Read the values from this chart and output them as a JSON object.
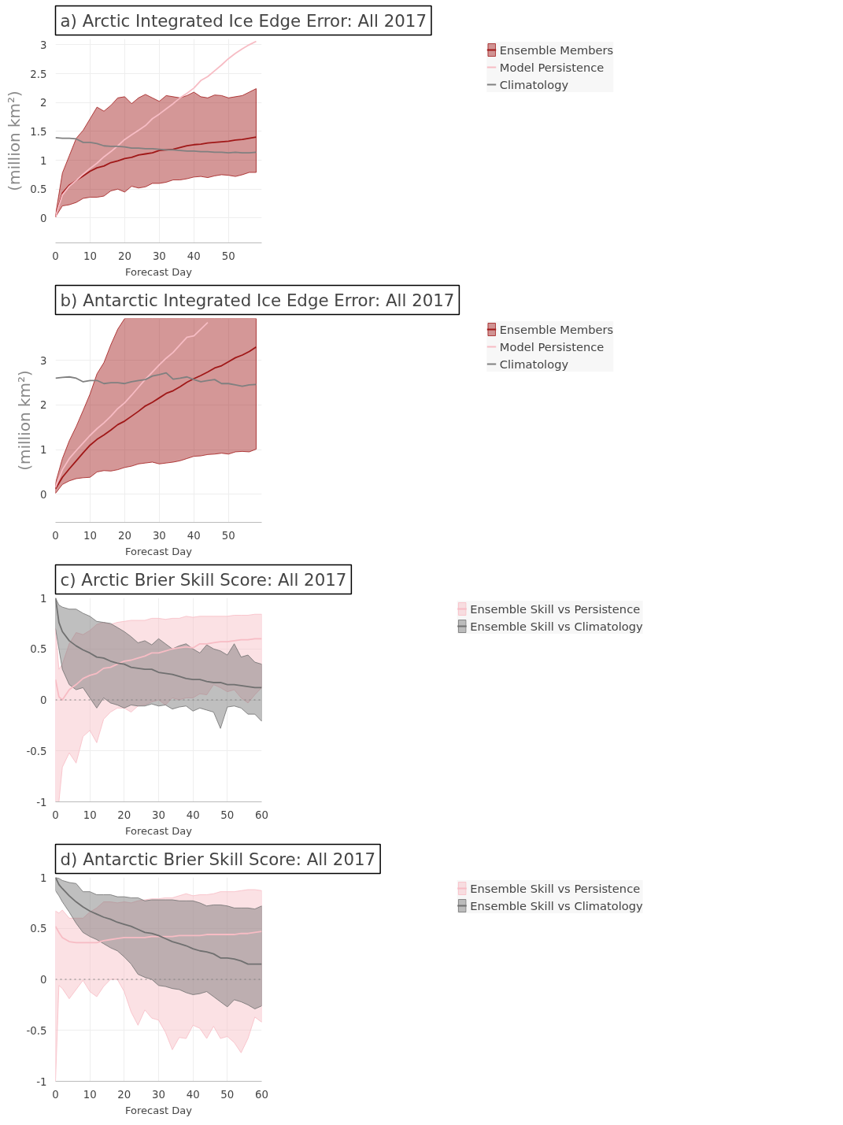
{
  "chart_data": [
    {
      "type": "line",
      "title": "a) Arctic Integrated Ice Edge Error: All 2017",
      "xlabel": "Forecast Day",
      "ylabel": "(million km²)",
      "xlim": [
        0,
        59.6
      ],
      "ylim": [
        -0.43,
        3.1
      ],
      "xticks": [
        0,
        10,
        20,
        30,
        40,
        50
      ],
      "yticks": [
        0,
        0.5,
        1,
        1.5,
        2,
        2.5,
        3
      ],
      "grid": true,
      "legend": "top right",
      "x": [
        0,
        2,
        4,
        6,
        8,
        10,
        12,
        14,
        16,
        18,
        20,
        22,
        24,
        26,
        28,
        30,
        32,
        34,
        36,
        38,
        40,
        42,
        44,
        46,
        48,
        50,
        52,
        54,
        56,
        58
      ],
      "series": [
        {
          "name": "Ensemble Members",
          "color": "#a01818",
          "values": [
            0.02,
            0.43,
            0.57,
            0.65,
            0.73,
            0.81,
            0.87,
            0.9,
            0.96,
            0.99,
            1.03,
            1.05,
            1.09,
            1.11,
            1.13,
            1.17,
            1.18,
            1.19,
            1.22,
            1.25,
            1.27,
            1.28,
            1.3,
            1.31,
            1.32,
            1.33,
            1.35,
            1.36,
            1.38,
            1.4
          ],
          "upper": [
            0.05,
            0.78,
            1.08,
            1.38,
            1.52,
            1.72,
            1.92,
            1.85,
            1.95,
            2.08,
            2.1,
            1.98,
            2.08,
            2.14,
            2.08,
            2.02,
            2.12,
            2.1,
            2.08,
            2.12,
            2.18,
            2.1,
            2.08,
            2.13,
            2.12,
            2.08,
            2.1,
            2.12,
            2.18,
            2.24
          ],
          "lower": [
            0.02,
            0.21,
            0.23,
            0.27,
            0.34,
            0.36,
            0.36,
            0.38,
            0.47,
            0.5,
            0.45,
            0.55,
            0.52,
            0.54,
            0.6,
            0.6,
            0.62,
            0.66,
            0.66,
            0.68,
            0.71,
            0.72,
            0.7,
            0.73,
            0.75,
            0.74,
            0.72,
            0.75,
            0.79,
            0.79
          ]
        },
        {
          "name": "Model Persistence",
          "color": "#f7bcc4",
          "values": [
            0.02,
            0.4,
            0.55,
            0.65,
            0.76,
            0.86,
            0.95,
            1.06,
            1.15,
            1.25,
            1.36,
            1.44,
            1.52,
            1.6,
            1.72,
            1.8,
            1.89,
            1.98,
            2.08,
            2.16,
            2.25,
            2.38,
            2.45,
            2.55,
            2.65,
            2.76,
            2.85,
            2.93,
            3.0,
            3.06
          ]
        },
        {
          "name": "Climatology",
          "color": "#808080",
          "values": [
            1.39,
            1.38,
            1.38,
            1.37,
            1.31,
            1.31,
            1.29,
            1.25,
            1.24,
            1.24,
            1.23,
            1.21,
            1.21,
            1.2,
            1.2,
            1.19,
            1.18,
            1.18,
            1.17,
            1.16,
            1.16,
            1.15,
            1.15,
            1.14,
            1.14,
            1.13,
            1.14,
            1.13,
            1.13,
            1.14
          ]
        }
      ]
    },
    {
      "type": "line",
      "title": "b) Antarctic Integrated Ice Edge Error: All 2017",
      "xlabel": "Forecast Day",
      "ylabel": "(million km²)",
      "xlim": [
        0,
        59.6
      ],
      "ylim": [
        -0.63,
        3.94
      ],
      "xticks": [
        0,
        10,
        20,
        30,
        40,
        50
      ],
      "yticks": [
        0,
        1,
        2,
        3
      ],
      "grid": true,
      "legend": "top right",
      "x": [
        0,
        2,
        4,
        6,
        8,
        10,
        12,
        14,
        16,
        18,
        20,
        22,
        24,
        26,
        28,
        30,
        32,
        34,
        36,
        38,
        40,
        42,
        44,
        46,
        48,
        50,
        52,
        54,
        56,
        58
      ],
      "series": [
        {
          "name": "Ensemble Members",
          "color": "#a01818",
          "values": [
            0.12,
            0.38,
            0.57,
            0.75,
            0.93,
            1.1,
            1.23,
            1.33,
            1.44,
            1.56,
            1.64,
            1.75,
            1.86,
            1.98,
            2.06,
            2.16,
            2.26,
            2.32,
            2.41,
            2.51,
            2.59,
            2.66,
            2.74,
            2.83,
            2.88,
            2.97,
            3.06,
            3.12,
            3.2,
            3.3
          ],
          "upper": [
            0.25,
            0.8,
            1.2,
            1.52,
            1.88,
            2.25,
            2.7,
            2.95,
            3.35,
            3.7,
            3.94,
            3.94,
            3.94,
            3.94,
            3.94,
            3.94,
            3.94,
            3.94,
            3.94,
            3.94,
            3.94,
            3.94,
            3.94,
            3.94,
            3.94,
            3.94,
            3.94,
            3.94,
            3.94,
            3.94
          ],
          "lower": [
            0.02,
            0.22,
            0.3,
            0.35,
            0.37,
            0.38,
            0.5,
            0.53,
            0.52,
            0.55,
            0.6,
            0.63,
            0.68,
            0.7,
            0.72,
            0.68,
            0.7,
            0.72,
            0.75,
            0.8,
            0.85,
            0.86,
            0.89,
            0.9,
            0.92,
            0.9,
            0.95,
            0.96,
            0.95,
            1.01
          ]
        },
        {
          "name": "Model Persistence",
          "color": "#f7bcc4",
          "values": [
            0.15,
            0.55,
            0.8,
            0.98,
            1.15,
            1.32,
            1.47,
            1.6,
            1.75,
            1.92,
            2.05,
            2.22,
            2.4,
            2.58,
            2.74,
            2.9,
            3.05,
            3.18,
            3.35,
            3.52,
            3.55,
            3.7,
            3.85,
            null,
            null,
            null,
            null,
            null,
            null,
            null
          ]
        },
        {
          "name": "Climatology",
          "color": "#808080",
          "values": [
            2.6,
            2.62,
            2.63,
            2.6,
            2.52,
            2.55,
            2.55,
            2.48,
            2.5,
            2.5,
            2.48,
            2.52,
            2.55,
            2.57,
            2.65,
            2.68,
            2.72,
            2.58,
            2.6,
            2.63,
            2.57,
            2.52,
            2.55,
            2.57,
            2.48,
            2.48,
            2.45,
            2.42,
            2.45,
            2.46
          ]
        }
      ]
    },
    {
      "type": "line",
      "title": "c) Arctic Brier Skill Score: All 2017",
      "xlabel": "Forecast Day",
      "xlim": [
        0,
        60
      ],
      "ylim": [
        -1,
        1
      ],
      "xticks": [
        0,
        10,
        20,
        30,
        40,
        50,
        60
      ],
      "yticks": [
        -1,
        -0.5,
        0,
        0.5,
        1
      ],
      "grid": true,
      "legend": "top right",
      "ref_lines": [
        {
          "axis": "y",
          "value": 0,
          "color": "#808080",
          "line_style": "dotted"
        }
      ],
      "x": [
        0,
        1,
        2,
        4,
        6,
        8,
        10,
        12,
        14,
        16,
        18,
        20,
        22,
        24,
        26,
        28,
        30,
        32,
        34,
        36,
        38,
        40,
        42,
        44,
        46,
        48,
        50,
        52,
        54,
        56,
        58,
        60
      ],
      "series": [
        {
          "name": "Ensemble Skill vs Persistence",
          "color": "#f7bcc4",
          "values": [
            0.2,
            0.03,
            0.0,
            0.1,
            0.15,
            0.21,
            0.24,
            0.26,
            0.31,
            0.32,
            0.35,
            0.38,
            0.39,
            0.41,
            0.43,
            0.46,
            0.46,
            0.48,
            0.5,
            0.51,
            0.52,
            0.51,
            0.55,
            0.55,
            0.56,
            0.57,
            0.57,
            0.58,
            0.59,
            0.59,
            0.6,
            0.6
          ],
          "upper": [
            0.7,
            0.3,
            0.35,
            0.55,
            0.66,
            0.64,
            0.68,
            0.74,
            0.76,
            0.74,
            0.76,
            0.77,
            0.78,
            0.78,
            0.78,
            0.8,
            0.8,
            0.79,
            0.8,
            0.8,
            0.82,
            0.81,
            0.82,
            0.82,
            0.82,
            0.82,
            0.82,
            0.83,
            0.83,
            0.83,
            0.84,
            0.84
          ],
          "lower": [
            -1,
            -1,
            -0.66,
            -0.52,
            -0.62,
            -0.36,
            -0.3,
            -0.42,
            -0.19,
            -0.12,
            -0.08,
            -0.08,
            -0.12,
            -0.06,
            -0.05,
            -0.02,
            0.0,
            -0.05,
            0.02,
            0.0,
            0.02,
            0.02,
            0.06,
            0.05,
            0.15,
            0.12,
            0.08,
            0.1,
            0.02,
            -0.03,
            0.05,
            0.12
          ]
        },
        {
          "name": "Ensemble Skill vs Climatology",
          "color": "#707070",
          "values": [
            1.0,
            0.76,
            0.67,
            0.58,
            0.53,
            0.49,
            0.46,
            0.42,
            0.41,
            0.38,
            0.36,
            0.35,
            0.32,
            0.31,
            0.3,
            0.3,
            0.27,
            0.26,
            0.25,
            0.23,
            0.21,
            0.2,
            0.2,
            0.18,
            0.17,
            0.17,
            0.15,
            0.15,
            0.14,
            0.13,
            0.12,
            0.12
          ],
          "upper": [
            1.0,
            0.93,
            0.91,
            0.89,
            0.89,
            0.85,
            0.82,
            0.77,
            0.76,
            0.75,
            0.71,
            0.67,
            0.62,
            0.56,
            0.58,
            0.54,
            0.6,
            0.55,
            0.5,
            0.53,
            0.55,
            0.5,
            0.46,
            0.54,
            0.5,
            0.48,
            0.44,
            0.55,
            0.42,
            0.44,
            0.37,
            0.35
          ],
          "lower": [
            0.7,
            0.5,
            0.3,
            0.15,
            0.1,
            0.12,
            0.02,
            -0.08,
            0.02,
            -0.03,
            -0.05,
            -0.08,
            -0.05,
            -0.06,
            -0.06,
            -0.04,
            -0.06,
            -0.05,
            -0.09,
            -0.07,
            -0.06,
            -0.11,
            -0.08,
            -0.1,
            -0.12,
            -0.28,
            -0.07,
            -0.06,
            -0.08,
            -0.14,
            -0.14,
            -0.21
          ]
        }
      ]
    },
    {
      "type": "line",
      "title": "d) Antarctic Brier Skill Score: All 2017",
      "xlabel": "Forecast Day",
      "xlim": [
        0,
        60
      ],
      "ylim": [
        -1,
        1
      ],
      "xticks": [
        0,
        10,
        20,
        30,
        40,
        50,
        60
      ],
      "yticks": [
        -1,
        -0.5,
        0,
        0.5,
        1
      ],
      "grid": true,
      "legend": "top right",
      "ref_lines": [
        {
          "axis": "y",
          "value": 0,
          "color": "#808080",
          "line_style": "dotted"
        }
      ],
      "x": [
        0,
        1,
        2,
        4,
        6,
        8,
        10,
        12,
        14,
        16,
        18,
        20,
        22,
        24,
        26,
        28,
        30,
        32,
        34,
        36,
        38,
        40,
        42,
        44,
        46,
        48,
        50,
        52,
        54,
        56,
        58,
        60
      ],
      "series": [
        {
          "name": "Ensemble Skill vs Persistence",
          "color": "#f7bcc4",
          "values": [
            0.52,
            0.46,
            0.41,
            0.37,
            0.36,
            0.36,
            0.36,
            0.36,
            0.38,
            0.39,
            0.4,
            0.41,
            0.41,
            0.41,
            0.41,
            0.42,
            0.42,
            0.42,
            0.42,
            0.43,
            0.43,
            0.43,
            0.43,
            0.44,
            0.44,
            0.44,
            0.44,
            0.44,
            0.45,
            0.45,
            0.46,
            0.47
          ],
          "upper": [
            0.67,
            0.65,
            0.68,
            0.6,
            0.6,
            0.6,
            0.66,
            0.7,
            0.76,
            0.76,
            0.75,
            0.76,
            0.75,
            0.77,
            0.78,
            0.79,
            0.79,
            0.8,
            0.8,
            0.82,
            0.84,
            0.82,
            0.83,
            0.83,
            0.84,
            0.86,
            0.86,
            0.86,
            0.87,
            0.88,
            0.88,
            0.87
          ],
          "lower": [
            -1,
            -0.06,
            -0.09,
            -0.19,
            -0.1,
            -0.01,
            -0.12,
            -0.17,
            -0.07,
            0.0,
            0.0,
            -0.12,
            -0.32,
            -0.45,
            -0.3,
            -0.38,
            -0.4,
            -0.52,
            -0.69,
            -0.57,
            -0.58,
            -0.45,
            -0.48,
            -0.58,
            -0.46,
            -0.58,
            -0.56,
            -0.62,
            -0.72,
            -0.58,
            -0.37,
            -0.42
          ]
        },
        {
          "name": "Ensemble Skill vs Climatology",
          "color": "#707070",
          "values": [
            1.0,
            0.93,
            0.89,
            0.82,
            0.76,
            0.71,
            0.67,
            0.64,
            0.61,
            0.59,
            0.56,
            0.54,
            0.52,
            0.49,
            0.46,
            0.45,
            0.43,
            0.4,
            0.37,
            0.35,
            0.33,
            0.3,
            0.28,
            0.27,
            0.25,
            0.21,
            0.21,
            0.2,
            0.18,
            0.15,
            0.15,
            0.15
          ],
          "upper": [
            1.0,
            0.99,
            0.97,
            0.95,
            0.94,
            0.86,
            0.86,
            0.83,
            0.83,
            0.83,
            0.81,
            0.81,
            0.8,
            0.8,
            0.77,
            0.78,
            0.78,
            0.78,
            0.78,
            0.77,
            0.77,
            0.77,
            0.75,
            0.72,
            0.73,
            0.73,
            0.72,
            0.7,
            0.7,
            0.7,
            0.69,
            0.72
          ],
          "lower": [
            0.87,
            0.82,
            0.76,
            0.66,
            0.55,
            0.46,
            0.42,
            0.39,
            0.35,
            0.31,
            0.28,
            0.22,
            0.15,
            0.05,
            0.02,
            0.0,
            -0.06,
            -0.07,
            -0.09,
            -0.1,
            -0.13,
            -0.15,
            -0.14,
            -0.12,
            -0.17,
            -0.22,
            -0.27,
            -0.2,
            -0.22,
            -0.25,
            -0.29,
            -0.26
          ]
        }
      ]
    }
  ]
}
